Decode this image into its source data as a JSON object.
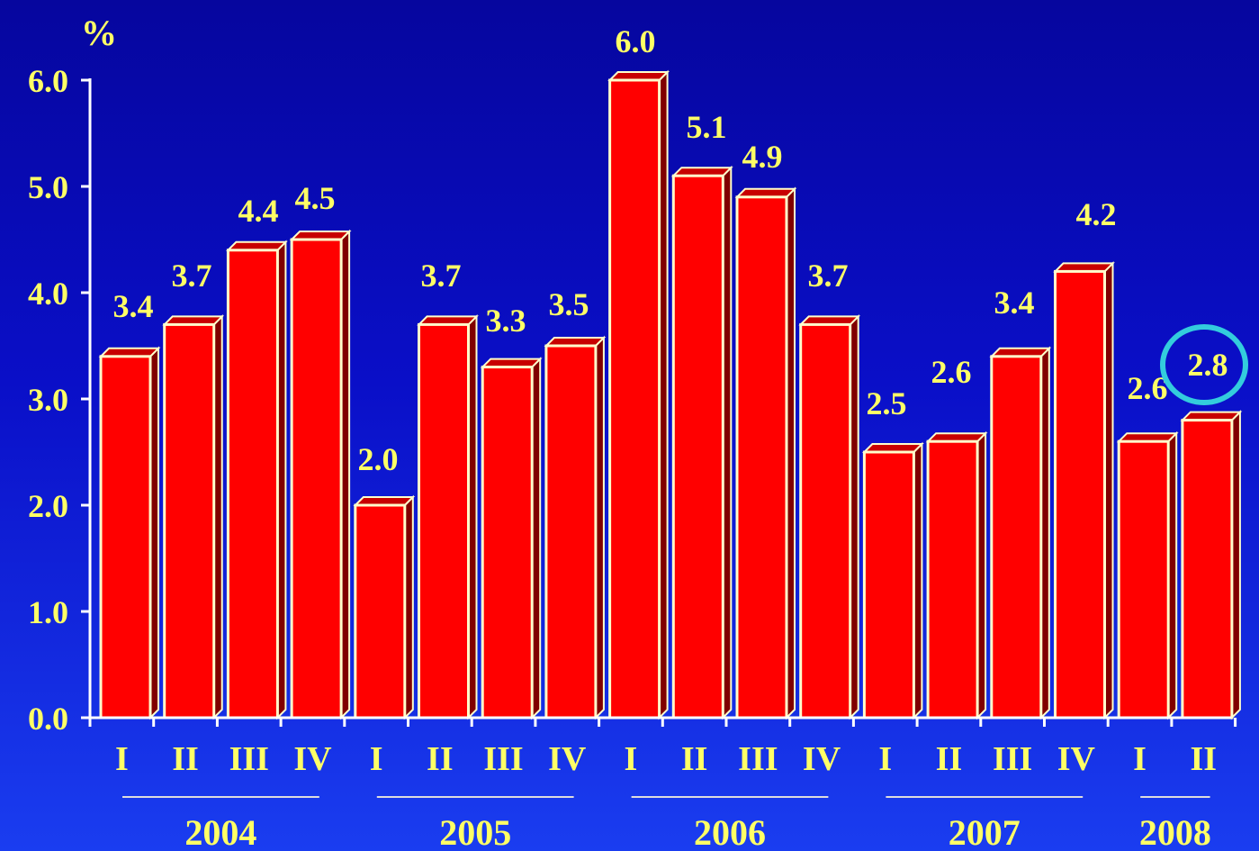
{
  "chart_data": {
    "type": "bar",
    "y_unit": "%",
    "ylim": [
      0,
      6
    ],
    "yticks": [
      "0.0",
      "1.0",
      "2.0",
      "3.0",
      "4.0",
      "5.0",
      "6.0"
    ],
    "categories": [
      "I",
      "II",
      "III",
      "IV",
      "I",
      "II",
      "III",
      "IV",
      "I",
      "II",
      "III",
      "IV",
      "I",
      "II",
      "III",
      "IV",
      "I",
      "II"
    ],
    "values": [
      3.4,
      3.7,
      4.4,
      4.5,
      2.0,
      3.7,
      3.3,
      3.5,
      6.0,
      5.1,
      4.9,
      3.7,
      2.5,
      2.6,
      3.4,
      4.2,
      2.6,
      2.8
    ],
    "data_labels": [
      "3.4",
      "3.7",
      "4.4",
      "4.5",
      "2.0",
      "3.7",
      "3.3",
      "3.5",
      "6.0",
      "5.1",
      "4.9",
      "3.7",
      "2.5",
      "2.6",
      "3.4",
      "4.2",
      "2.6",
      "2.8"
    ],
    "groups": [
      {
        "label": "2004",
        "count": 4
      },
      {
        "label": "2005",
        "count": 4
      },
      {
        "label": "2006",
        "count": 4
      },
      {
        "label": "2007",
        "count": 4
      },
      {
        "label": "2008",
        "count": 2
      }
    ],
    "highlighted_index": 17,
    "grid": false,
    "legend": "none",
    "colors": {
      "bar_front": "#ff0000",
      "bar_top": "#c80000",
      "bar_side": "#800000",
      "bar_outline": "#ffffcc",
      "text": "#ffff66",
      "axis": "#ffffff",
      "highlight_ring": "#33ccdd"
    }
  }
}
